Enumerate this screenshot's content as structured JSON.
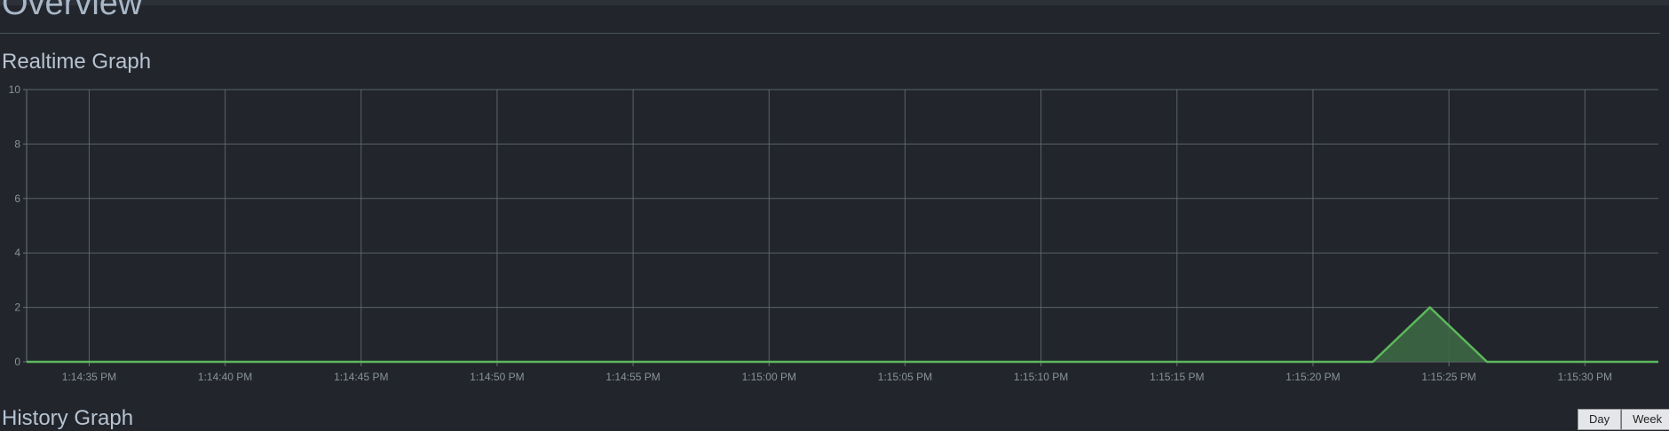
{
  "page": {
    "title": "Overview",
    "realtime_heading": "Realtime Graph",
    "history_heading": "History Graph",
    "range_buttons": [
      "Day",
      "Week"
    ]
  },
  "colors": {
    "background": "#22262c",
    "grid": "#6a7078",
    "series_line": "#5cb85c",
    "series_fill": "#3d6b44",
    "tick_text": "#8a929b"
  },
  "chart_data": {
    "type": "area",
    "title": "",
    "xlabel": "",
    "ylabel": "",
    "ylim": [
      0,
      10
    ],
    "grid": true,
    "yticks": [
      0,
      2,
      4,
      6,
      8,
      10
    ],
    "xticks": [
      "1:14:35 PM",
      "1:14:40 PM",
      "1:14:45 PM",
      "1:14:50 PM",
      "1:14:55 PM",
      "1:15:00 PM",
      "1:15:05 PM",
      "1:15:10 PM",
      "1:15:15 PM",
      "1:15:20 PM",
      "1:15:25 PM",
      "1:15:30 PM"
    ],
    "xlim": [
      "1:14:32.7 PM",
      "1:15:32.7 PM"
    ],
    "series": [
      {
        "values": [
          {
            "x": "1:14:32.7 PM",
            "y": 0
          },
          {
            "x": "1:15:22.2 PM",
            "y": 0
          },
          {
            "x": "1:15:24.3 PM",
            "y": 2
          },
          {
            "x": "1:15:26.4 PM",
            "y": 0
          },
          {
            "x": "1:15:32.7 PM",
            "y": 0
          }
        ]
      }
    ]
  }
}
